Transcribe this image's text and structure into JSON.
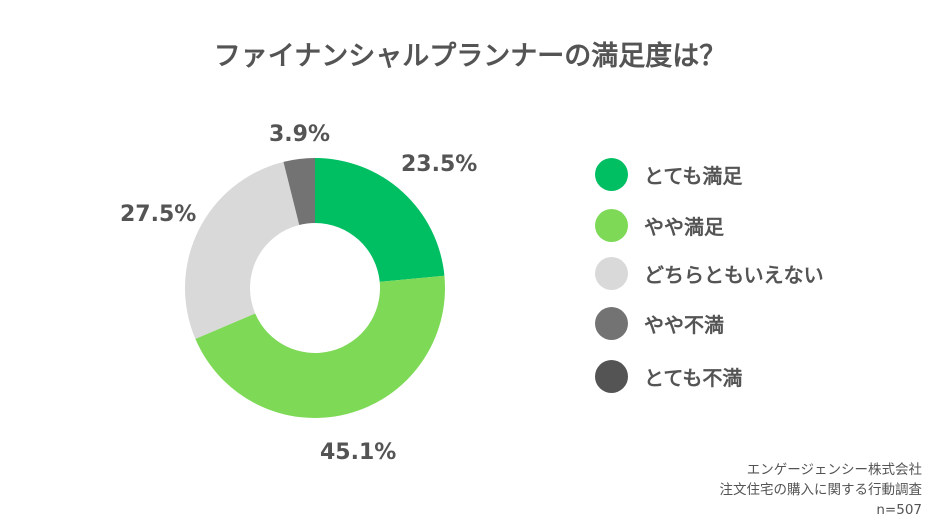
{
  "chart_data": {
    "type": "pie",
    "donut": true,
    "title": "ファイナンシャルプランナーの満足度は？",
    "categories": [
      "とても満足",
      "やや満足",
      "どちらともいえない",
      "やや不満",
      "とても不満"
    ],
    "values": [
      23.5,
      45.1,
      27.5,
      3.9,
      0
    ],
    "data_labels": [
      "23.5%",
      "45.1%",
      "27.5%",
      "3.9%",
      ""
    ],
    "colors": [
      "#00bf63",
      "#7ed957",
      "#d9d9d9",
      "#737373",
      "#545454"
    ],
    "legend_position": "right"
  },
  "footer": {
    "source_company": "エンゲージェンシー株式会社",
    "survey": "注文住宅の購入に関する行動調査",
    "sample": "n=507"
  }
}
